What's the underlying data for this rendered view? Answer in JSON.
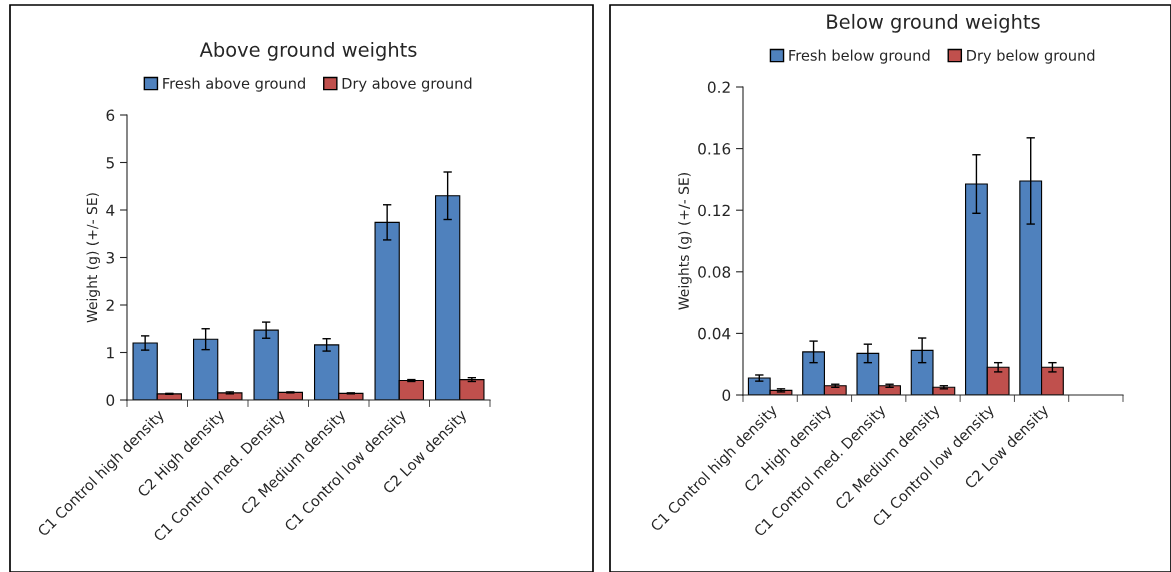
{
  "chart_data": [
    {
      "type": "bar",
      "title": "Above ground weights",
      "ylabel": "Weight (g) (+/- SE)",
      "categories": [
        "C1 Control high density",
        "C2 High density",
        "C1 Control med. Density",
        "C2 Medium density",
        "C1 Control low density",
        "C2 Low density"
      ],
      "ylim": [
        0,
        6
      ],
      "yticks": [
        0,
        1,
        2,
        3,
        4,
        5,
        6
      ],
      "legend": "top",
      "grid": false,
      "series": [
        {
          "name": "Fresh above ground",
          "color": "#4f81bd",
          "values": [
            1.2,
            1.28,
            1.47,
            1.16,
            3.74,
            4.3
          ],
          "errors": [
            0.15,
            0.22,
            0.17,
            0.13,
            0.37,
            0.5
          ]
        },
        {
          "name": "Dry above ground",
          "color": "#c0504d",
          "values": [
            0.13,
            0.15,
            0.16,
            0.14,
            0.41,
            0.43
          ],
          "errors": [
            0.01,
            0.02,
            0.01,
            0.01,
            0.02,
            0.04
          ]
        }
      ]
    },
    {
      "type": "bar",
      "title": "Below ground weights",
      "ylabel": "Weights (g) (+/- SE)",
      "categories": [
        "C1 Control high density",
        "C2 High density",
        "C1 Control med. Density",
        "C2 Medium density",
        "C1 Control low density",
        "C2 Low density",
        null
      ],
      "ylim": [
        0,
        0.2
      ],
      "yticks": [
        0,
        0.04,
        0.08,
        0.12,
        0.16,
        0.2
      ],
      "legend": "top",
      "grid": false,
      "series": [
        {
          "name": "Fresh below ground",
          "color": "#4f81bd",
          "values": [
            0.011,
            0.028,
            0.027,
            0.029,
            0.137,
            0.139,
            null
          ],
          "errors": [
            0.002,
            0.007,
            0.006,
            0.008,
            0.019,
            0.028,
            null
          ]
        },
        {
          "name": "Dry below ground",
          "color": "#c0504d",
          "values": [
            0.003,
            0.006,
            0.006,
            0.005,
            0.018,
            0.018,
            null
          ],
          "errors": [
            0.001,
            0.001,
            0.001,
            0.001,
            0.003,
            0.003,
            null
          ]
        }
      ]
    }
  ]
}
